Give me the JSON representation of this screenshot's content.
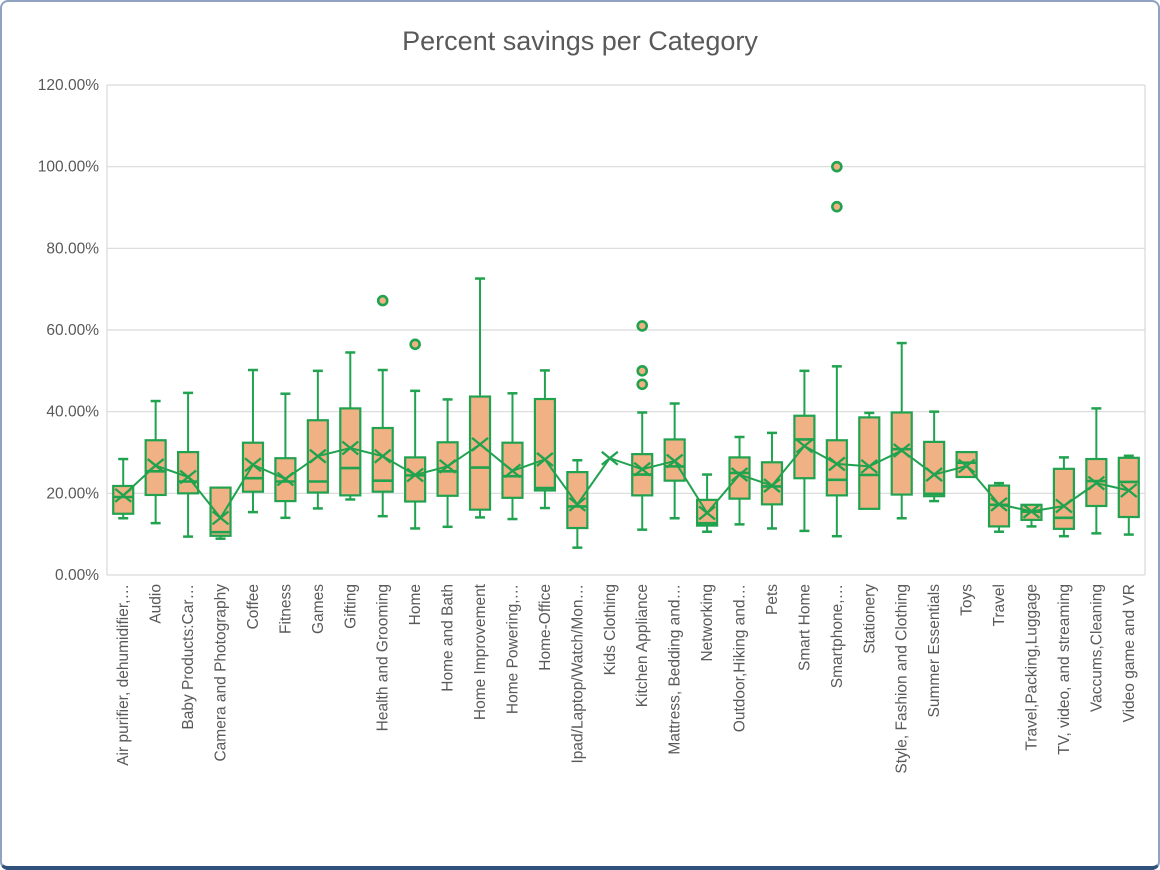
{
  "chart_data": {
    "type": "box",
    "title": "Percent savings per Category",
    "xlabel": "",
    "ylabel": "",
    "ylim": [
      0,
      120
    ],
    "grid": true,
    "legend": "none",
    "y_ticks": [
      {
        "value": 0,
        "label": "0.00%"
      },
      {
        "value": 20,
        "label": "20.00%"
      },
      {
        "value": 40,
        "label": "40.00%"
      },
      {
        "value": 60,
        "label": "60.00%"
      },
      {
        "value": 80,
        "label": "80.00%"
      },
      {
        "value": 100,
        "label": "100.00%"
      },
      {
        "value": 120,
        "label": "120.00%"
      }
    ],
    "colors": {
      "box_fill": "#F0B284",
      "green": "#21A24F",
      "grid": "#D9D9D9",
      "text": "#595959"
    },
    "mean_marker": "x",
    "categories": [
      {
        "label": "Air purifier, dehumidifier,…",
        "min": 13.9,
        "q1": 15.0,
        "median": 19.1,
        "q3": 21.8,
        "max": 28.4,
        "mean": 19.5,
        "outliers": []
      },
      {
        "label": "Audio",
        "min": 12.7,
        "q1": 19.6,
        "median": 25.4,
        "q3": 33.0,
        "max": 42.6,
        "mean": 26.8,
        "outliers": []
      },
      {
        "label": "Baby Products:Car…",
        "min": 9.4,
        "q1": 20.0,
        "median": 22.9,
        "q3": 30.1,
        "max": 44.6,
        "mean": 24.0,
        "outliers": []
      },
      {
        "label": "Camera and Photography",
        "min": 8.9,
        "q1": 9.6,
        "median": 10.5,
        "q3": 21.4,
        "max": 21.4,
        "mean": 14.0,
        "outliers": []
      },
      {
        "label": "Coffee",
        "min": 15.4,
        "q1": 20.4,
        "median": 23.7,
        "q3": 32.4,
        "max": 50.2,
        "mean": 27.0,
        "outliers": []
      },
      {
        "label": "Fitness",
        "min": 14.0,
        "q1": 18.1,
        "median": 22.9,
        "q3": 28.6,
        "max": 44.4,
        "mean": 23.5,
        "outliers": []
      },
      {
        "label": "Games",
        "min": 16.3,
        "q1": 20.2,
        "median": 22.9,
        "q3": 37.9,
        "max": 50.0,
        "mean": 29.1,
        "outliers": []
      },
      {
        "label": "Gifting",
        "min": 18.5,
        "q1": 19.5,
        "median": 26.2,
        "q3": 40.8,
        "max": 54.5,
        "mean": 31.1,
        "outliers": []
      },
      {
        "label": "Health and Grooming",
        "min": 14.4,
        "q1": 20.4,
        "median": 23.1,
        "q3": 36.0,
        "max": 50.2,
        "mean": 29.1,
        "outliers": [
          67.2
        ]
      },
      {
        "label": "Home",
        "min": 11.4,
        "q1": 18.0,
        "median": 24.4,
        "q3": 28.8,
        "max": 45.1,
        "mean": 24.5,
        "outliers": [
          56.5
        ]
      },
      {
        "label": "Home and Bath",
        "min": 11.8,
        "q1": 19.4,
        "median": 25.4,
        "q3": 32.5,
        "max": 43.0,
        "mean": 26.6,
        "outliers": []
      },
      {
        "label": "Home Improvement",
        "min": 14.1,
        "q1": 16.0,
        "median": 26.3,
        "q3": 43.7,
        "max": 72.6,
        "mean": 32.0,
        "outliers": []
      },
      {
        "label": "Home Powering,…",
        "min": 13.7,
        "q1": 18.9,
        "median": 24.2,
        "q3": 32.4,
        "max": 44.5,
        "mean": 25.5,
        "outliers": []
      },
      {
        "label": "Home-Office",
        "min": 16.4,
        "q1": 20.7,
        "median": 21.3,
        "q3": 43.1,
        "max": 50.1,
        "mean": 28.3,
        "outliers": []
      },
      {
        "label": "Ipad/Laptop/Watch/Mon…",
        "min": 6.7,
        "q1": 11.5,
        "median": 16.8,
        "q3": 25.2,
        "max": 28.1,
        "mean": 17.3,
        "outliers": []
      },
      {
        "label": "Kids Clothing",
        "min": 28.6,
        "q1": 28.6,
        "median": 28.6,
        "q3": 28.6,
        "max": 28.6,
        "mean": 28.6,
        "outliers": []
      },
      {
        "label": "Kitchen Appliance",
        "min": 11.1,
        "q1": 19.5,
        "median": 24.6,
        "q3": 29.6,
        "max": 39.8,
        "mean": 25.9,
        "outliers": [
          61.0,
          50.0,
          46.7
        ]
      },
      {
        "label": "Mattress, Bedding and…",
        "min": 13.9,
        "q1": 23.1,
        "median": 26.6,
        "q3": 33.2,
        "max": 42.0,
        "mean": 27.9,
        "outliers": []
      },
      {
        "label": "Networking",
        "min": 10.6,
        "q1": 12.1,
        "median": 12.7,
        "q3": 18.4,
        "max": 24.6,
        "mean": 15.2,
        "outliers": []
      },
      {
        "label": "Outdoor,Hiking and…",
        "min": 12.4,
        "q1": 18.7,
        "median": 25.0,
        "q3": 28.8,
        "max": 33.8,
        "mean": 24.6,
        "outliers": []
      },
      {
        "label": "Pets",
        "min": 11.4,
        "q1": 17.3,
        "median": 21.7,
        "q3": 27.6,
        "max": 34.8,
        "mean": 21.9,
        "outliers": []
      },
      {
        "label": "Smart Home",
        "min": 10.8,
        "q1": 23.7,
        "median": 33.2,
        "q3": 39.0,
        "max": 50.0,
        "mean": 31.6,
        "outliers": []
      },
      {
        "label": "Smartphone,…",
        "min": 9.5,
        "q1": 19.5,
        "median": 23.3,
        "q3": 33.0,
        "max": 51.1,
        "mean": 27.2,
        "outliers": [
          100.0,
          90.2
        ]
      },
      {
        "label": "Stationery",
        "min": 16.2,
        "q1": 16.2,
        "median": 24.5,
        "q3": 38.6,
        "max": 39.7,
        "mean": 26.6,
        "outliers": []
      },
      {
        "label": "Style, Fashion and Clothing",
        "min": 13.9,
        "q1": 19.7,
        "median": 30.8,
        "q3": 39.8,
        "max": 56.8,
        "mean": 30.5,
        "outliers": []
      },
      {
        "label": "Summer Essentials",
        "min": 18.1,
        "q1": 19.3,
        "median": 19.9,
        "q3": 32.6,
        "max": 40.0,
        "mean": 24.6,
        "outliers": []
      },
      {
        "label": "Toys",
        "min": 24.0,
        "q1": 24.0,
        "median": 27.5,
        "q3": 30.1,
        "max": 30.1,
        "mean": 26.7,
        "outliers": []
      },
      {
        "label": "Travel",
        "min": 10.6,
        "q1": 11.9,
        "median": 17.2,
        "q3": 21.9,
        "max": 22.5,
        "mean": 17.3,
        "outliers": []
      },
      {
        "label": "Travel,Packing,Luggage",
        "min": 11.9,
        "q1": 13.5,
        "median": 15.5,
        "q3": 17.2,
        "max": 17.2,
        "mean": 15.6,
        "outliers": []
      },
      {
        "label": "TV, video, and streaming",
        "min": 9.5,
        "q1": 11.3,
        "median": 14.0,
        "q3": 26.0,
        "max": 28.8,
        "mean": 16.9,
        "outliers": []
      },
      {
        "label": "Vaccums,Cleaning",
        "min": 10.2,
        "q1": 16.9,
        "median": 23.0,
        "q3": 28.4,
        "max": 40.8,
        "mean": 22.5,
        "outliers": []
      },
      {
        "label": "Video game and VR",
        "min": 9.9,
        "q1": 14.2,
        "median": 22.8,
        "q3": 28.7,
        "max": 29.2,
        "mean": 20.7,
        "outliers": []
      }
    ]
  }
}
